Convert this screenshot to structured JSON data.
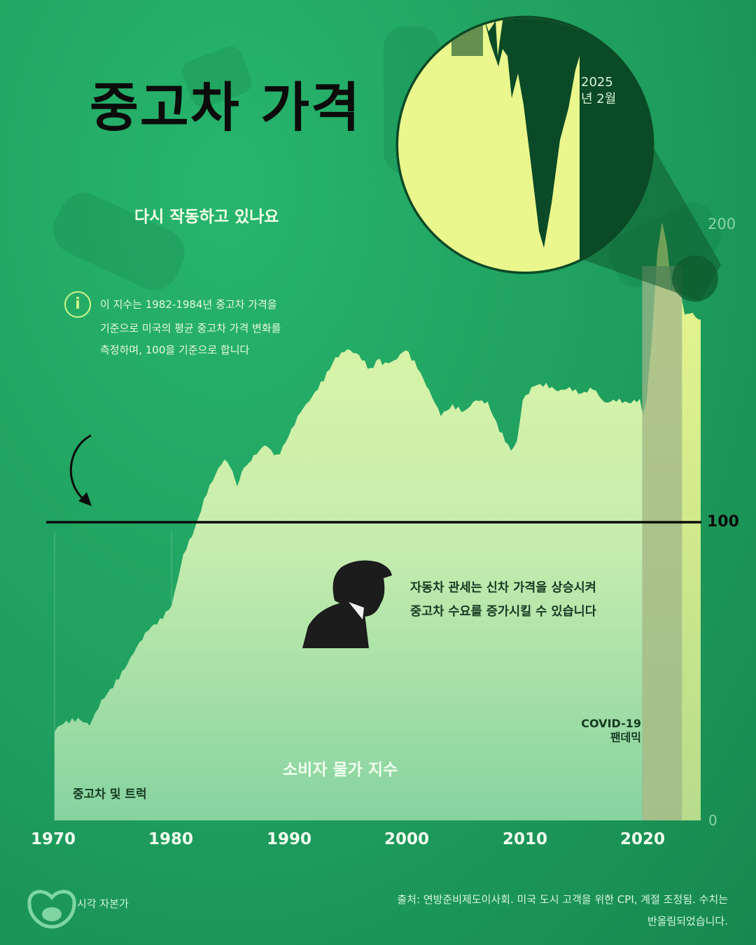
{
  "title": "중고차 가격",
  "subtitle": "다시 작동하고 있나요",
  "info": {
    "lines": [
      "이 지수는 1982-1984년 중고차 가격을",
      "기준으로 미국의 평균 중고차 가격 변화를",
      "측정하며, 100을 기준으로 합니다"
    ]
  },
  "annotation": {
    "lines": [
      "자동차 관세는 신차 가격을 상승시켜",
      "중고차 수요를 증가시킬 수 있습니다"
    ]
  },
  "covid_label": [
    "COVID-19",
    "팬데믹"
  ],
  "zoom_label": [
    "2025",
    "년 2월"
  ],
  "source": [
    "출처: 연방준비제도이사회. 미국 도시 고객을 위한 CPI, 계절 조정됨. 수치는",
    "반올림되었습니다."
  ],
  "brand": "시각 자본가",
  "colors": {
    "background": "#1f9e5e",
    "area_top": "#e2f7a2",
    "area_bottom": "#8ed6a2",
    "covid_band": "#9fb58a",
    "baseline": "#0b0b0b",
    "zoom_dark": "#0b4a26",
    "zoom_light": "#eaf78d"
  },
  "chart_data": {
    "type": "area",
    "series_label": "중고차 및 트럭",
    "area_label": "소비자 물가 지수",
    "x_ticks": [
      "1970",
      "1980",
      "1990",
      "2000",
      "2010",
      "2020"
    ],
    "y_ticks": [
      "0",
      "100",
      "200"
    ],
    "xlim": [
      1970,
      2025.2
    ],
    "ylim": [
      0,
      200
    ],
    "baseline": 100,
    "baseline_label": "100",
    "highlight_range": [
      2020.2,
      2023.6
    ],
    "x": [
      1970,
      1970.5,
      1971,
      1972,
      1973,
      1974,
      1975,
      1976,
      1977,
      1978,
      1979,
      1980,
      1981,
      1982,
      1983,
      1984,
      1984.5,
      1985,
      1985.6,
      1986,
      1986.6,
      1987,
      1988,
      1989,
      1989.5,
      1990,
      1991,
      1992,
      1993,
      1994,
      1995,
      1996,
      1997,
      1997.7,
      1998,
      1999,
      2000,
      2001,
      2002,
      2003,
      2004,
      2005,
      2006,
      2007,
      2008,
      2009,
      2009.5,
      2010,
      2011,
      2012,
      2013,
      2014,
      2015,
      2016,
      2017,
      2018,
      2019,
      2020,
      2020.3,
      2020.6,
      2021,
      2021.5,
      2021.9,
      2022.3,
      2022.7,
      2023,
      2023.4,
      2023.8,
      2024,
      2024.5,
      2025,
      2025.2
    ],
    "y": [
      30,
      32,
      33,
      34,
      32,
      40,
      45,
      51,
      58,
      64,
      67,
      72,
      89,
      98,
      110,
      118,
      121,
      119,
      112,
      117,
      120,
      122,
      126,
      122,
      125,
      129,
      137,
      142,
      148,
      155,
      158,
      156,
      151,
      155,
      153,
      154,
      158,
      152,
      144,
      136,
      139,
      137,
      141,
      140,
      131,
      124,
      127,
      141,
      146,
      146,
      144,
      145,
      143,
      145,
      140,
      141,
      140,
      141,
      136,
      142,
      160,
      190,
      201,
      193,
      178,
      182,
      178,
      170,
      170,
      170,
      168,
      168
    ]
  }
}
